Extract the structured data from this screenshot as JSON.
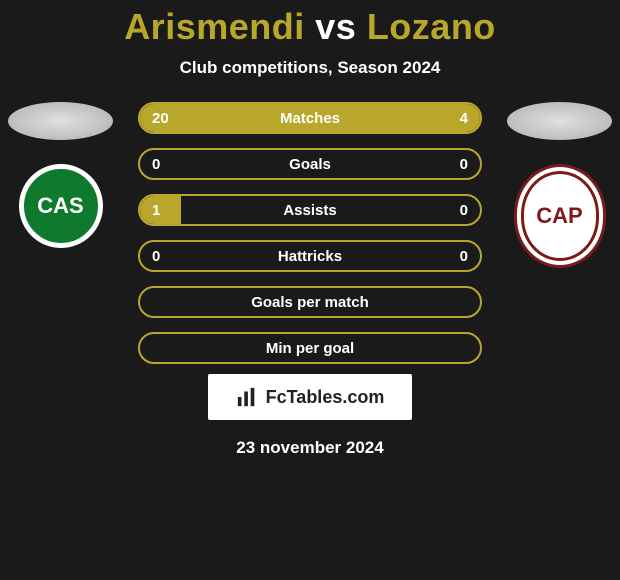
{
  "header": {
    "player_a": "Arismendi",
    "vs": "vs",
    "player_b": "Lozano",
    "subtitle": "Club competitions, Season 2024"
  },
  "colors": {
    "bar_border": "#b9a72b",
    "fill_a": "#b9a72b",
    "fill_b": "#b9a72b",
    "text": "#ffffff"
  },
  "clubs": {
    "a": {
      "abbrev": "CAS",
      "bg": "#0f7a2e",
      "ring": "#ffffff",
      "text": "#ffffff"
    },
    "b": {
      "abbrev": "CAP",
      "bg": "#ffffff",
      "ring": "#7c1a1a",
      "text": "#7c1a1a"
    }
  },
  "stats": [
    {
      "label": "Matches",
      "a": "20",
      "b": "4",
      "a_pct": 83,
      "b_pct": 17,
      "show_values": true
    },
    {
      "label": "Goals",
      "a": "0",
      "b": "0",
      "a_pct": 0,
      "b_pct": 0,
      "show_values": true
    },
    {
      "label": "Assists",
      "a": "1",
      "b": "0",
      "a_pct": 12,
      "b_pct": 0,
      "show_values": true
    },
    {
      "label": "Hattricks",
      "a": "0",
      "b": "0",
      "a_pct": 0,
      "b_pct": 0,
      "show_values": true
    },
    {
      "label": "Goals per match",
      "a": "",
      "b": "",
      "a_pct": 0,
      "b_pct": 0,
      "show_values": false
    },
    {
      "label": "Min per goal",
      "a": "",
      "b": "",
      "a_pct": 0,
      "b_pct": 0,
      "show_values": false
    }
  ],
  "branding": "FcTables.com",
  "date": "23 november 2024"
}
